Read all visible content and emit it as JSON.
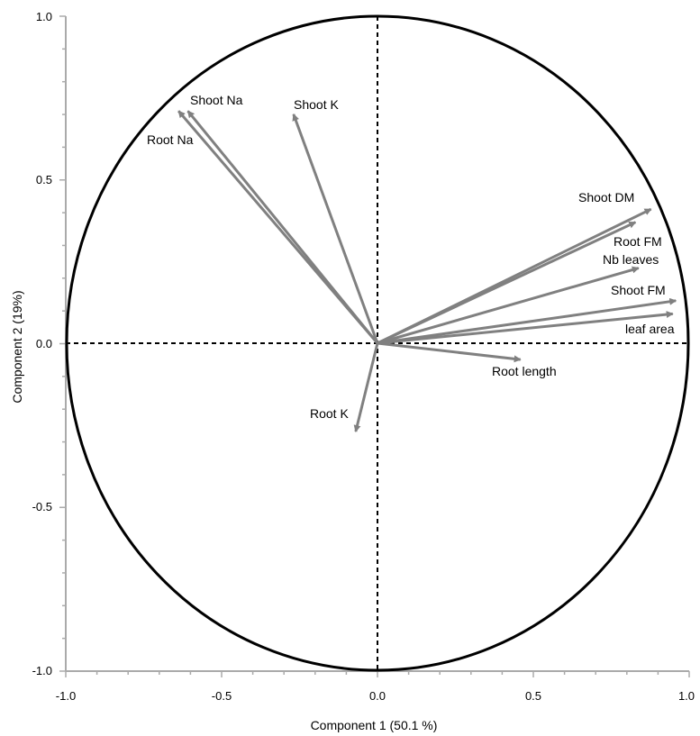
{
  "chart_data": {
    "type": "scatter",
    "subtype": "pca-correlation-circle",
    "title": "",
    "xlabel": "Component 1  (50.1 %)",
    "ylabel": "Component 2 (19%)",
    "xlim": [
      -1.0,
      1.0
    ],
    "ylim": [
      -1.0,
      1.0
    ],
    "xticks": [
      "-1.0",
      "-0.5",
      "0.0",
      "0.5",
      "1.0"
    ],
    "yticks": [
      "1.0",
      "0.5",
      "0.0",
      "-0.5",
      "-1.0"
    ],
    "grid": false,
    "unit_circle": true,
    "reference_lines": [
      0,
      0
    ],
    "colors": {
      "arrow": "#808080",
      "circle": "#000000",
      "axes": "#aaaaaa"
    },
    "vectors": [
      {
        "name": "Shoot Na",
        "x": -0.61,
        "y": 0.71
      },
      {
        "name": "Root Na",
        "x": -0.64,
        "y": 0.71
      },
      {
        "name": "Shoot K",
        "x": -0.27,
        "y": 0.7
      },
      {
        "name": "Shoot DM",
        "x": 0.88,
        "y": 0.41
      },
      {
        "name": "Root FM",
        "x": 0.83,
        "y": 0.37
      },
      {
        "name": "Nb leaves",
        "x": 0.84,
        "y": 0.23
      },
      {
        "name": "Shoot FM",
        "x": 0.96,
        "y": 0.13
      },
      {
        "name": "leaf area",
        "x": 0.95,
        "y": 0.09
      },
      {
        "name": "Root length",
        "x": 0.46,
        "y": -0.05
      },
      {
        "name": "Root K",
        "x": -0.07,
        "y": -0.27
      }
    ]
  }
}
